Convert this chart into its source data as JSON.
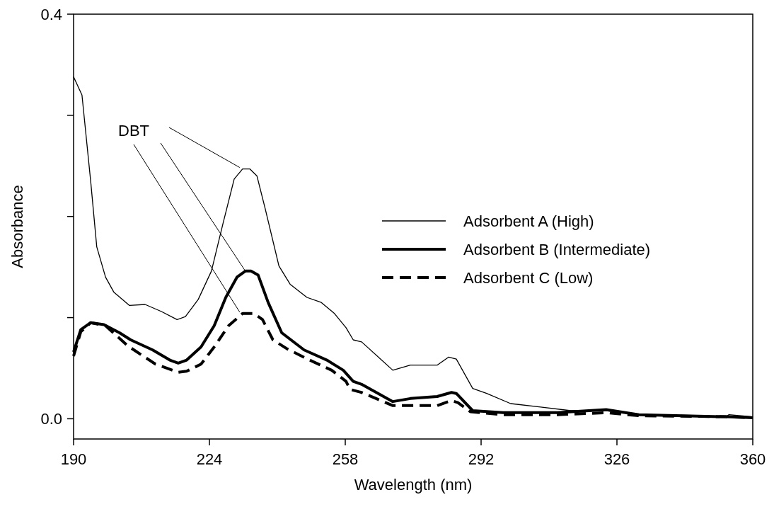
{
  "chart_data": {
    "type": "line",
    "xlabel": "Wavelength (nm)",
    "ylabel": "Absorbance",
    "xlim": [
      190,
      360
    ],
    "xticks": [
      190,
      224,
      258,
      292,
      326,
      360
    ],
    "ylim": [
      -0.02,
      0.4
    ],
    "yticks": [
      {
        "value": 0.0,
        "label": "0.0"
      },
      {
        "value": 0.1,
        "label": null
      },
      {
        "value": 0.2,
        "label": null
      },
      {
        "value": 0.3,
        "label": null
      },
      {
        "value": 0.4,
        "label": "0.4"
      }
    ],
    "legend": "right",
    "grid": false,
    "marker": "none",
    "annotations": [
      {
        "text": "DBT",
        "x": 233,
        "y": 0.146
      }
    ],
    "series": [
      {
        "name": "Adsorbent A (High)",
        "color": "#000000",
        "line_style": "solid",
        "x": [
          190,
          192.1,
          194.3,
          195.8,
          198,
          200.1,
          204,
          207.9,
          212,
          215.9,
          218,
          221.2,
          224.5,
          227.4,
          230.2,
          232.3,
          234.1,
          235.9,
          238,
          241.4,
          244.2,
          248.4,
          252,
          255.3,
          258.2,
          260,
          262.1,
          269.9,
          274.3,
          281,
          283.9,
          285.8,
          289.9,
          293.4,
          299.4,
          314.5,
          323.3,
          331.5,
          353.3,
          354,
          360
        ],
        "values": [
          0.338,
          0.32,
          0.234,
          0.17,
          0.14,
          0.125,
          0.112,
          0.113,
          0.106,
          0.098,
          0.101,
          0.118,
          0.146,
          0.193,
          0.237,
          0.247,
          0.247,
          0.24,
          0.207,
          0.151,
          0.133,
          0.12,
          0.115,
          0.104,
          0.09,
          0.078,
          0.076,
          0.048,
          0.053,
          0.053,
          0.061,
          0.059,
          0.03,
          0.025,
          0.015,
          0.008,
          0.008,
          0.004,
          0.002,
          0.004,
          0.002
        ]
      },
      {
        "name": "Adsorbent B (Intermediate)",
        "color": "#000000",
        "line_style": "solid",
        "x": [
          190,
          191.8,
          194.3,
          197.6,
          201.5,
          204.3,
          209.8,
          214.1,
          216.2,
          218.3,
          221.9,
          225.2,
          228.1,
          230.9,
          233,
          234.4,
          236.2,
          238.7,
          242.1,
          247.7,
          253.4,
          257.5,
          260,
          262.1,
          269.9,
          274.3,
          281,
          284.6,
          285.8,
          289.9,
          297.5,
          311.1,
          323.3,
          331.5,
          353.3,
          360
        ],
        "values": [
          0.066,
          0.088,
          0.095,
          0.093,
          0.085,
          0.078,
          0.068,
          0.058,
          0.055,
          0.058,
          0.071,
          0.092,
          0.12,
          0.14,
          0.146,
          0.146,
          0.142,
          0.115,
          0.085,
          0.068,
          0.058,
          0.048,
          0.037,
          0.034,
          0.017,
          0.02,
          0.022,
          0.026,
          0.025,
          0.008,
          0.006,
          0.006,
          0.009,
          0.004,
          0.002,
          0.001
        ]
      },
      {
        "name": "Adsorbent C (Low)",
        "color": "#000000",
        "line_style": "dashed",
        "x": [
          190,
          191.8,
          194.3,
          198,
          203.6,
          210.5,
          216.2,
          218.3,
          221.9,
          225.2,
          228.8,
          232.3,
          235.2,
          237.3,
          239.9,
          243.5,
          249.1,
          254.6,
          258.2,
          259.2,
          262.1,
          269.9,
          276.9,
          281,
          284.6,
          286.2,
          289.3,
          297.5,
          311.1,
          323.3,
          331.5,
          353.3,
          360
        ],
        "values": [
          0.062,
          0.086,
          0.095,
          0.092,
          0.072,
          0.054,
          0.046,
          0.047,
          0.054,
          0.071,
          0.092,
          0.104,
          0.104,
          0.098,
          0.078,
          0.069,
          0.058,
          0.048,
          0.037,
          0.029,
          0.026,
          0.013,
          0.013,
          0.013,
          0.018,
          0.016,
          0.007,
          0.004,
          0.004,
          0.006,
          0.003,
          0.002,
          0.001
        ]
      }
    ]
  }
}
